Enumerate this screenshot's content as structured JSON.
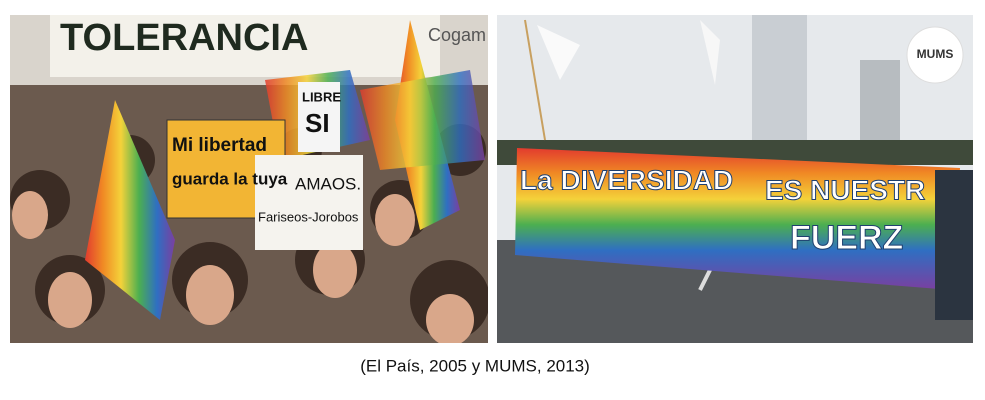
{
  "figure": {
    "images": [
      {
        "signs": [
          "TOLERANCIA",
          "Cogam",
          "Mi libertad",
          "guarda la tuya",
          "LIBRE",
          "SI",
          "AMAOS.",
          "Fariseos-Jorobos"
        ]
      },
      {
        "banner": [
          "La DIVERSIDAD",
          "ES NUESTR",
          "FUERZ"
        ],
        "logo": "MUMS"
      }
    ],
    "caption": "(El País, 2005 y MUMS, 2013)"
  }
}
